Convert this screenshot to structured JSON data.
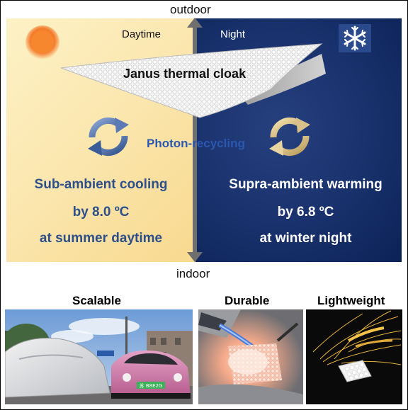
{
  "directions": {
    "top": "outdoor",
    "bottom": "indoor"
  },
  "panel": {
    "day_label": "Daytime",
    "night_label": "Night",
    "cloak_label": "Janus thermal cloak",
    "center_label": "Photon-recycling",
    "day_effect": {
      "line1": "Sub-ambient cooling",
      "line2": "by 8.0 ºC",
      "line3": "at summer daytime"
    },
    "night_effect": {
      "line1": "Supra-ambient warming",
      "line2": "by 6.8 ºC",
      "line3": "at winter night"
    }
  },
  "photos": [
    {
      "title": "Scalable",
      "plate": "苏 B8E2G"
    },
    {
      "title": "Durable"
    },
    {
      "title": "Lightweight"
    }
  ],
  "colors": {
    "day_text": "#2d4f8a",
    "night_text": "#ffffff",
    "photon_text": "#2a58b0"
  }
}
